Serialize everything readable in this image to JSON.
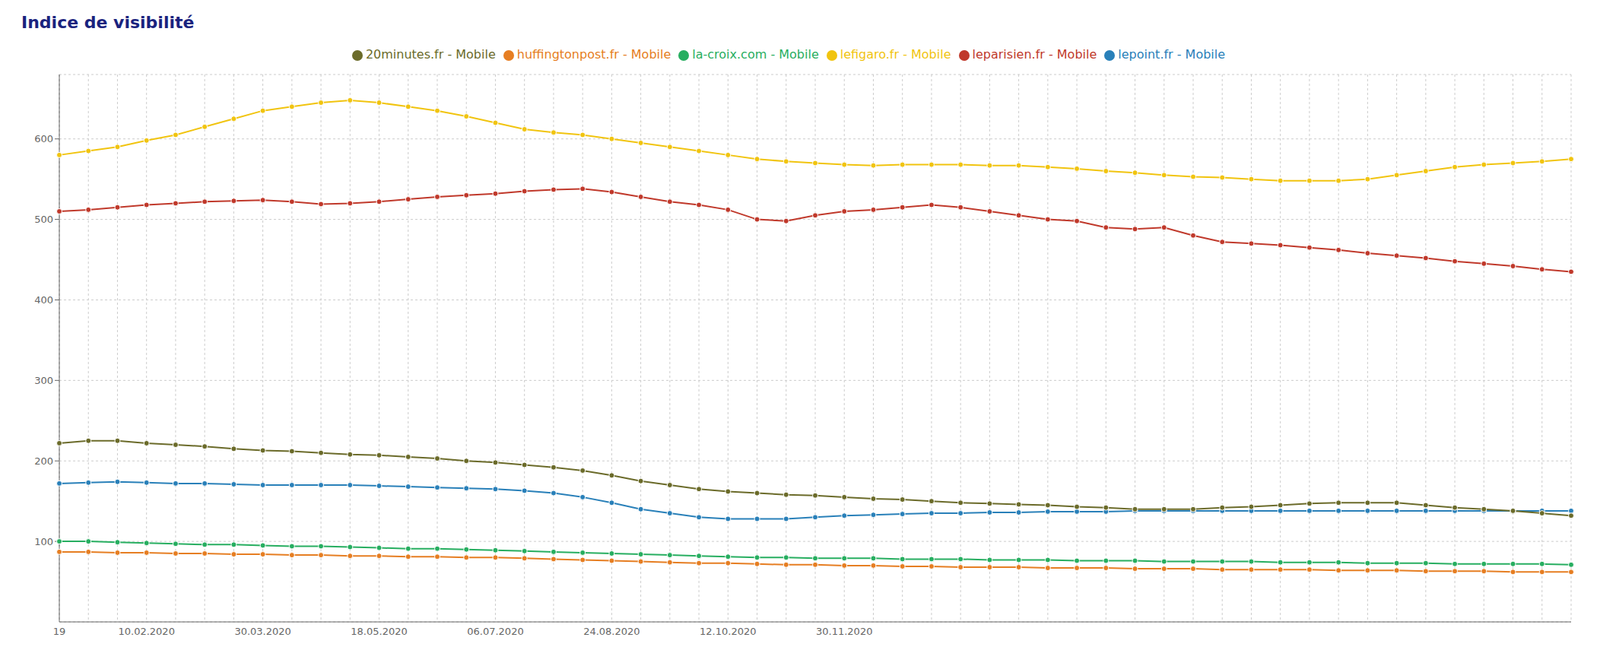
{
  "chart_data": {
    "type": "line",
    "title": "Indice de visibilité",
    "categories": [
      "19",
      null,
      null,
      "10.02.2020",
      null,
      null,
      null,
      "30.03.2020",
      null,
      null,
      null,
      "18.05.2020",
      null,
      null,
      null,
      "06.07.2020",
      null,
      null,
      null,
      "24.08.2020",
      null,
      null,
      null,
      "12.10.2020",
      null,
      null,
      null,
      "30.11.2020",
      null,
      null,
      null,
      null,
      null,
      null,
      null,
      null,
      null,
      null,
      null,
      null,
      null,
      null,
      null,
      null,
      null,
      null,
      null,
      null,
      null,
      null,
      null,
      null,
      null
    ],
    "series": [
      {
        "name": "leparisien.fr - Mobile",
        "color": "#c0392b",
        "values": [
          510,
          512,
          515,
          518,
          520,
          522,
          523,
          524,
          522,
          519,
          520,
          522,
          525,
          528,
          530,
          532,
          535,
          537,
          538,
          534,
          528,
          522,
          518,
          512,
          500,
          498,
          505,
          510,
          512,
          515,
          518,
          515,
          510,
          505,
          500,
          498,
          490,
          488,
          490,
          480,
          472,
          470,
          468,
          465,
          462,
          458,
          455,
          452,
          448,
          445,
          442,
          438,
          435
        ]
      },
      {
        "name": "lepoint.fr - Mobile",
        "color": "#2980b9",
        "values": [
          172,
          173,
          174,
          173,
          172,
          172,
          171,
          170,
          170,
          170,
          170,
          169,
          168,
          167,
          166,
          165,
          163,
          160,
          155,
          148,
          140,
          135,
          130,
          128,
          128,
          128,
          130,
          132,
          133,
          134,
          135,
          135,
          136,
          136,
          137,
          137,
          137,
          138,
          138,
          138,
          138,
          138,
          138,
          138,
          138,
          138,
          138,
          138,
          138,
          138,
          138,
          138,
          138
        ]
      },
      {
        "name": "la-croix.com - Mobile",
        "color": "#27ae60",
        "values": [
          100,
          100,
          99,
          98,
          97,
          96,
          96,
          95,
          94,
          94,
          93,
          92,
          91,
          91,
          90,
          89,
          88,
          87,
          86,
          85,
          84,
          83,
          82,
          81,
          80,
          80,
          79,
          79,
          79,
          78,
          78,
          78,
          77,
          77,
          77,
          76,
          76,
          76,
          75,
          75,
          75,
          75,
          74,
          74,
          74,
          73,
          73,
          73,
          72,
          72,
          72,
          72,
          71
        ]
      },
      {
        "name": "lefigaro.fr - Mobile",
        "color": "#f1c40f",
        "values": [
          580,
          585,
          590,
          598,
          605,
          615,
          625,
          635,
          640,
          645,
          648,
          645,
          640,
          635,
          628,
          620,
          612,
          608,
          605,
          600,
          595,
          590,
          585,
          580,
          575,
          572,
          570,
          568,
          567,
          568,
          568,
          568,
          567,
          567,
          565,
          563,
          560,
          558,
          555,
          553,
          552,
          550,
          548,
          548,
          548,
          550,
          555,
          560,
          565,
          568,
          570,
          572,
          575
        ]
      },
      {
        "name": "20minutes.fr - Mobile",
        "color": "#6b6b2a",
        "values": [
          222,
          225,
          225,
          222,
          220,
          218,
          215,
          213,
          212,
          210,
          208,
          207,
          205,
          203,
          200,
          198,
          195,
          192,
          188,
          182,
          175,
          170,
          165,
          162,
          160,
          158,
          157,
          155,
          153,
          152,
          150,
          148,
          147,
          146,
          145,
          143,
          142,
          140,
          140,
          140,
          142,
          143,
          145,
          147,
          148,
          148,
          148,
          145,
          142,
          140,
          138,
          135,
          132
        ]
      },
      {
        "name": "huffingtonpost.fr - Mobile",
        "color": "#e67e22",
        "values": [
          87,
          87,
          86,
          86,
          85,
          85,
          84,
          84,
          83,
          83,
          82,
          82,
          81,
          81,
          80,
          80,
          79,
          78,
          77,
          76,
          75,
          74,
          73,
          73,
          72,
          71,
          71,
          70,
          70,
          69,
          69,
          68,
          68,
          68,
          67,
          67,
          67,
          66,
          66,
          66,
          65,
          65,
          65,
          65,
          64,
          64,
          64,
          63,
          63,
          63,
          62,
          62,
          62
        ]
      }
    ],
    "ylim": [
      0,
      680
    ],
    "yticks": [
      100,
      200,
      300,
      400,
      500,
      600
    ],
    "grid": true,
    "legend": "top",
    "marker": "circle"
  }
}
